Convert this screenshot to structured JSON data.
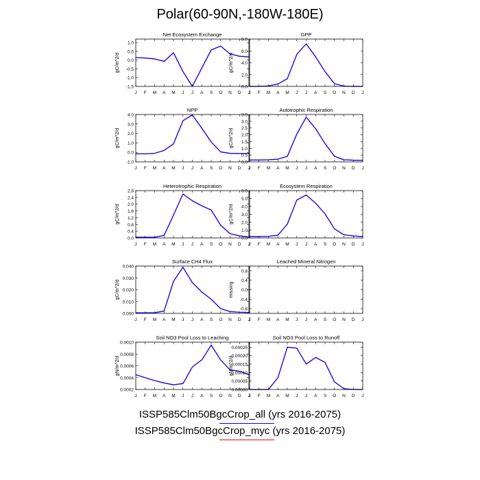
{
  "title": "Polar(60-90N,-180W-180E)",
  "legend": [
    {
      "label": "ISSP585Clm50BgcCrop_all (yrs 2016-2075)",
      "color": "#0000ff"
    },
    {
      "label": "ISSP585Clm50BgcCrop_myc (yrs 2016-2075)",
      "color": "#ff0000"
    }
  ],
  "months": [
    "J",
    "F",
    "M",
    "A",
    "M",
    "J",
    "J",
    "A",
    "S",
    "O",
    "N",
    "D",
    "J"
  ],
  "chart_data": [
    {
      "type": "line",
      "title": "Net Ecosystem Exchange",
      "ylabel": "gC/m^2/d",
      "ylim": [
        -1.5,
        1.2
      ],
      "yticks": [
        -1.5,
        -1.0,
        -0.5,
        0.0,
        0.5,
        1.0
      ],
      "ytick_labels": [
        "-1.5",
        "-1.0",
        "-0.5",
        "0.0",
        "0.5",
        "1.0"
      ],
      "x": [
        "J",
        "F",
        "M",
        "A",
        "M",
        "J",
        "J",
        "A",
        "S",
        "O",
        "N",
        "D",
        "J"
      ],
      "series": [
        {
          "color": "#0000ff",
          "values": [
            0.15,
            0.12,
            0.07,
            -0.07,
            0.42,
            -0.65,
            -1.5,
            -0.45,
            0.58,
            0.8,
            0.35,
            0.22,
            0.18
          ]
        },
        {
          "color": "#ff0000",
          "values": [
            0.15,
            0.12,
            0.07,
            -0.07,
            0.42,
            -0.65,
            -1.5,
            -0.45,
            0.58,
            0.8,
            0.35,
            0.22,
            0.18
          ]
        }
      ]
    },
    {
      "type": "line",
      "title": "GPP",
      "ylabel": "gC/m^2/d",
      "ylim": [
        0,
        8.0
      ],
      "yticks": [
        0,
        2,
        4,
        6,
        8
      ],
      "ytick_labels": [
        "0.0",
        "2.0",
        "4.0",
        "6.0",
        "8.0"
      ],
      "x": [
        "J",
        "F",
        "M",
        "A",
        "M",
        "J",
        "J",
        "A",
        "S",
        "O",
        "N",
        "D",
        "J"
      ],
      "series": [
        {
          "color": "#0000ff",
          "values": [
            0.0,
            0.0,
            0.08,
            0.4,
            1.3,
            5.4,
            7.2,
            5.0,
            2.5,
            0.45,
            0.05,
            0.0,
            0.0
          ]
        },
        {
          "color": "#ff0000",
          "values": [
            0.0,
            0.0,
            0.08,
            0.4,
            1.3,
            5.4,
            7.2,
            5.0,
            2.5,
            0.45,
            0.05,
            0.0,
            0.0
          ]
        }
      ]
    },
    {
      "type": "line",
      "title": "NPP",
      "ylabel": "gC/m^2/d",
      "ylim": [
        -1.0,
        4.0
      ],
      "yticks": [
        -1,
        0,
        1,
        2,
        3,
        4
      ],
      "ytick_labels": [
        "-1.0",
        "0.0",
        "1.0",
        "2.0",
        "3.0",
        "4.0"
      ],
      "x": [
        "J",
        "F",
        "M",
        "A",
        "M",
        "J",
        "J",
        "A",
        "S",
        "O",
        "N",
        "D",
        "J"
      ],
      "series": [
        {
          "color": "#0000ff",
          "values": [
            -0.15,
            -0.15,
            -0.1,
            0.2,
            0.9,
            3.35,
            3.95,
            2.55,
            1.1,
            0.05,
            -0.1,
            -0.12,
            -0.12
          ]
        },
        {
          "color": "#ff0000",
          "values": [
            -0.15,
            -0.15,
            -0.1,
            0.2,
            0.9,
            3.35,
            3.95,
            2.55,
            1.1,
            0.05,
            -0.1,
            -0.12,
            -0.12
          ]
        }
      ]
    },
    {
      "type": "line",
      "title": "Autotrophic Respiration",
      "ylabel": "gC/m^2/d",
      "ylim": [
        0,
        3.5
      ],
      "yticks": [
        0,
        0.5,
        1.0,
        1.5,
        2.0,
        2.5,
        3.0,
        3.5
      ],
      "ytick_labels": [
        "0.0",
        "0.5",
        "1.0",
        "1.5",
        "2.0",
        "2.5",
        "3.0",
        "3.5"
      ],
      "x": [
        "J",
        "F",
        "M",
        "A",
        "M",
        "J",
        "J",
        "A",
        "S",
        "O",
        "N",
        "D",
        "J"
      ],
      "series": [
        {
          "color": "#0000ff",
          "values": [
            0.13,
            0.13,
            0.15,
            0.2,
            0.4,
            2.05,
            3.3,
            2.45,
            1.35,
            0.4,
            0.15,
            0.12,
            0.11
          ]
        },
        {
          "color": "#ff0000",
          "values": [
            0.13,
            0.13,
            0.15,
            0.2,
            0.4,
            2.05,
            3.3,
            2.45,
            1.35,
            0.4,
            0.15,
            0.12,
            0.11
          ]
        }
      ]
    },
    {
      "type": "line",
      "title": "Heterotrophic Respiration",
      "ylabel": "gC/m^2/d",
      "ylim": [
        0,
        2.8
      ],
      "yticks": [
        0,
        0.4,
        0.8,
        1.2,
        1.6,
        2.0,
        2.4,
        2.8
      ],
      "ytick_labels": [
        "0.0",
        "0.4",
        "0.8",
        "1.2",
        "1.6",
        "2.0",
        "2.4",
        "2.8"
      ],
      "x": [
        "J",
        "F",
        "M",
        "A",
        "M",
        "J",
        "J",
        "A",
        "S",
        "O",
        "N",
        "D",
        "J"
      ],
      "series": [
        {
          "color": "#0000ff",
          "values": [
            0.05,
            0.04,
            0.04,
            0.15,
            1.35,
            2.6,
            2.2,
            1.9,
            1.65,
            0.75,
            0.25,
            0.12,
            0.07
          ]
        },
        {
          "color": "#ff0000",
          "values": [
            0.05,
            0.04,
            0.04,
            0.15,
            1.35,
            2.6,
            2.2,
            1.9,
            1.65,
            0.75,
            0.25,
            0.12,
            0.07
          ]
        }
      ]
    },
    {
      "type": "line",
      "title": "Ecosystem Respiration",
      "ylabel": "gC/m^2/d",
      "ylim": [
        0,
        6.0
      ],
      "yticks": [
        0,
        1,
        2,
        3,
        4,
        5,
        6
      ],
      "ytick_labels": [
        "0.0",
        "1.0",
        "2.0",
        "3.0",
        "4.0",
        "5.0",
        "6.0"
      ],
      "x": [
        "J",
        "F",
        "M",
        "A",
        "M",
        "J",
        "J",
        "A",
        "S",
        "O",
        "N",
        "D",
        "J"
      ],
      "series": [
        {
          "color": "#0000ff",
          "values": [
            0.18,
            0.17,
            0.2,
            0.35,
            1.75,
            4.8,
            5.45,
            4.4,
            3.05,
            1.15,
            0.4,
            0.25,
            0.18
          ]
        },
        {
          "color": "#ff0000",
          "values": [
            0.18,
            0.17,
            0.2,
            0.35,
            1.75,
            4.8,
            5.45,
            4.4,
            3.05,
            1.15,
            0.4,
            0.25,
            0.18
          ]
        }
      ]
    },
    {
      "type": "line",
      "title": "Surface CH4 Flux",
      "ylabel": "gC/m^2/d",
      "ylim": [
        0,
        0.04
      ],
      "yticks": [
        0,
        0.01,
        0.02,
        0.03,
        0.04
      ],
      "ytick_labels": [
        "0.000",
        "0.010",
        "0.020",
        "0.030",
        "0.040"
      ],
      "x": [
        "J",
        "F",
        "M",
        "A",
        "M",
        "J",
        "J",
        "A",
        "S",
        "O",
        "N",
        "D",
        "J"
      ],
      "series": [
        {
          "color": "#0000ff",
          "values": [
            0.0005,
            0.0005,
            0.0006,
            0.002,
            0.027,
            0.039,
            0.026,
            0.018,
            0.012,
            0.004,
            0.0015,
            0.001,
            0.0008
          ]
        },
        {
          "color": "#ff0000",
          "values": [
            0.0005,
            0.0005,
            0.0006,
            0.002,
            0.027,
            0.039,
            0.026,
            0.018,
            0.012,
            0.004,
            0.0015,
            0.001,
            0.0008
          ]
        }
      ]
    },
    {
      "type": "line",
      "title": "Leached Mineral Nitrogen",
      "ylabel": "missing",
      "ylim": [
        -1.0,
        1.0
      ],
      "yticks": [
        -0.8,
        -0.4,
        0.0,
        0.4,
        0.8
      ],
      "ytick_labels": [
        "-0.8",
        "-0.4",
        "0.0",
        "0.4",
        "0.8"
      ],
      "x": [
        "J",
        "F",
        "M",
        "A",
        "M",
        "J",
        "J",
        "A",
        "S",
        "O",
        "N",
        "D",
        "J"
      ],
      "series": []
    },
    {
      "type": "line",
      "title": "Soil NO3 Pool Loss to Leaching",
      "ylabel": "gN/m^2/d",
      "ylim": [
        0.0002,
        0.001
      ],
      "yticks": [
        0.0002,
        0.0004,
        0.0006,
        0.0008,
        0.001
      ],
      "ytick_labels": [
        "0.0002",
        "0.0004",
        "0.0006",
        "0.0008",
        "0.0010"
      ],
      "x": [
        "J",
        "F",
        "M",
        "A",
        "M",
        "J",
        "J",
        "A",
        "S",
        "O",
        "N",
        "D",
        "J"
      ],
      "series": [
        {
          "color": "#0000ff",
          "values": [
            0.00045,
            0.0004,
            0.00035,
            0.00031,
            0.00028,
            0.0003,
            0.00058,
            0.0007,
            0.00095,
            0.0007,
            0.00053,
            0.00051,
            0.00045
          ]
        },
        {
          "color": "#ff0000",
          "values": [
            0.00045,
            0.0004,
            0.00035,
            0.00031,
            0.00028,
            0.0003,
            0.00058,
            0.0007,
            0.00095,
            0.0007,
            0.00053,
            0.00051,
            0.00045
          ]
        }
      ]
    },
    {
      "type": "line",
      "title": "Soil NO3 Pool Loss to Runoff",
      "ylabel": "gN/m^2/d",
      "ylim": [
        0,
        0.00028
      ],
      "yticks": [
        0,
        5e-05,
        0.0001,
        0.00015,
        0.0002,
        0.00025
      ],
      "ytick_labels": [
        "0.00000",
        "0.00005",
        "0.00010",
        "0.00015",
        "0.00020",
        "0.00025"
      ],
      "x": [
        "J",
        "F",
        "M",
        "A",
        "M",
        "J",
        "J",
        "A",
        "S",
        "O",
        "N",
        "D",
        "J"
      ],
      "series": [
        {
          "color": "#0000ff",
          "values": [
            0.0,
            0.0,
            0.0,
            7e-05,
            0.00025,
            0.000245,
            0.00015,
            0.00019,
            0.00016,
            4.5e-05,
            5e-06,
            0.0,
            0.0
          ]
        },
        {
          "color": "#ff0000",
          "values": [
            0.0,
            0.0,
            0.0,
            7e-05,
            0.00025,
            0.000245,
            0.00015,
            0.00019,
            0.00016,
            4.5e-05,
            5e-06,
            0.0,
            0.0
          ]
        }
      ]
    }
  ]
}
